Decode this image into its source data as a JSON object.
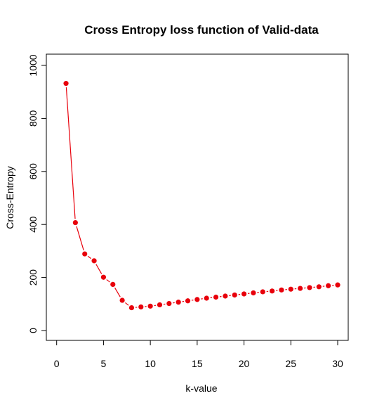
{
  "chart_data": {
    "type": "line",
    "title": "Cross Entropy loss function of Valid-data",
    "xlabel": "k-value",
    "ylabel": "Cross-Entropy",
    "xlim": [
      0,
      30
    ],
    "ylim": [
      0,
      1000
    ],
    "xticks": [
      "0",
      "5",
      "10",
      "15",
      "20",
      "25",
      "30"
    ],
    "yticks": [
      "0",
      "200",
      "400",
      "600",
      "800",
      "1000"
    ],
    "grid": false,
    "legend": "none",
    "series_color": "#e8000b",
    "series": [
      {
        "x": [
          1,
          2,
          3,
          4,
          5,
          6,
          7,
          8,
          9,
          10,
          11,
          12,
          13,
          14,
          15,
          16,
          17,
          18,
          19,
          20,
          21,
          22,
          23,
          24,
          25,
          26,
          27,
          28,
          29,
          30
        ],
        "values": [
          932,
          407,
          289,
          263,
          201,
          174,
          114,
          86,
          89,
          92,
          97,
          102,
          107,
          112,
          117,
          122,
          126,
          130,
          134,
          138,
          142,
          146,
          149,
          153,
          156,
          159,
          162,
          165,
          169,
          172
        ]
      }
    ]
  }
}
